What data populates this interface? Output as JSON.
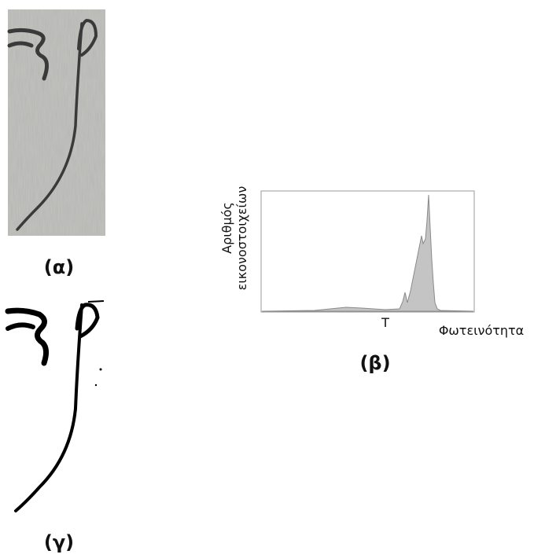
{
  "figure": {
    "panel_a": {
      "label": "(α)"
    },
    "panel_b": {
      "label": "(β)",
      "y_label_line1": "Αριθμός",
      "y_label_line2": "εικονοστοιχείων",
      "x_label": "Φωτεινότητα",
      "threshold_label": "T"
    },
    "panel_c": {
      "label": "(γ)"
    }
  }
}
